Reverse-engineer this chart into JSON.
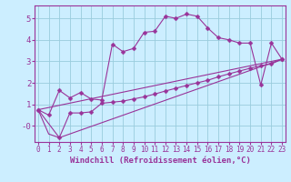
{
  "xlabel": "Windchill (Refroidissement éolien,°C)",
  "bg_color": "#cceeff",
  "grid_color": "#99ccdd",
  "line_color": "#993399",
  "x_ticks": [
    0,
    1,
    2,
    3,
    4,
    5,
    6,
    7,
    8,
    9,
    10,
    11,
    12,
    13,
    14,
    15,
    16,
    17,
    18,
    19,
    20,
    21,
    22,
    23
  ],
  "y_ticks": [
    0,
    1,
    2,
    3,
    4,
    5
  ],
  "y_tick_labels": [
    "-0",
    "1",
    "2",
    "3",
    "4",
    "5"
  ],
  "ylim": [
    -0.75,
    5.6
  ],
  "xlim": [
    -0.3,
    23.3
  ],
  "line1_x": [
    0,
    1,
    2,
    3,
    4,
    5,
    6,
    7,
    8,
    9,
    10,
    11,
    12,
    13,
    14,
    15,
    16,
    17,
    18,
    19,
    20,
    21,
    22,
    23
  ],
  "line1_y": [
    0.75,
    0.5,
    1.65,
    1.3,
    1.55,
    1.25,
    1.2,
    3.8,
    3.45,
    3.6,
    4.35,
    4.4,
    5.1,
    5.0,
    5.2,
    5.1,
    4.55,
    4.1,
    4.0,
    3.85,
    3.85,
    1.9,
    3.85,
    3.1
  ],
  "line2_x": [
    0,
    2,
    3,
    4,
    5,
    6,
    7,
    8,
    9,
    10,
    11,
    12,
    13,
    14,
    15,
    16,
    17,
    18,
    19,
    20,
    21,
    22,
    23
  ],
  "line2_y": [
    0.75,
    -0.55,
    0.6,
    0.6,
    0.65,
    1.05,
    1.1,
    1.15,
    1.25,
    1.35,
    1.48,
    1.62,
    1.75,
    1.88,
    2.0,
    2.12,
    2.28,
    2.42,
    2.55,
    2.68,
    2.8,
    2.88,
    3.1
  ],
  "line3_x": [
    0,
    1,
    2,
    23
  ],
  "line3_y": [
    0.75,
    -0.38,
    -0.55,
    3.1
  ],
  "line4_x": [
    0,
    23
  ],
  "line4_y": [
    0.75,
    3.1
  ],
  "font_color": "#993399",
  "tick_fontsize": 5.5,
  "xlabel_fontsize": 6.5
}
